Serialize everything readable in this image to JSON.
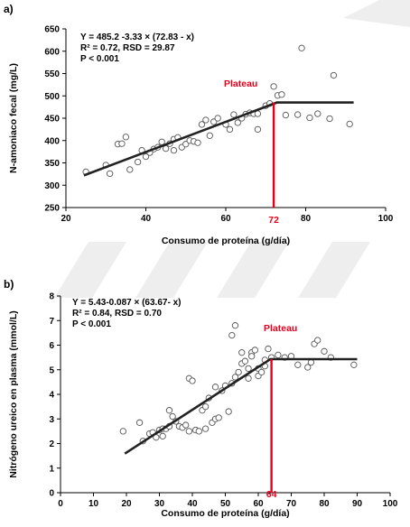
{
  "chart_data": [
    {
      "panel_label": "a)",
      "type": "scatter",
      "xlabel": "Consumo de proteína (g/día)",
      "ylabel": "N-amoniaco fecal (mg/L)",
      "xlim": [
        20,
        100
      ],
      "ylim": [
        250,
        650
      ],
      "xticks": [
        20,
        40,
        60,
        80,
        100
      ],
      "yticks": [
        250,
        300,
        350,
        400,
        450,
        500,
        550,
        600,
        650
      ],
      "equation_lines": [
        "Y = 485.2 -3.33 × (72.83 - x)",
        "R² = 0.72, RSD = 29.87",
        "P < 0.001"
      ],
      "plateau_label": "Plateau",
      "breakpoint": {
        "x": 72,
        "label": "72"
      },
      "fit_line": [
        [
          24.5,
          322
        ],
        [
          72.8,
          485.2
        ],
        [
          92,
          485.2
        ]
      ],
      "points": [
        [
          25,
          330
        ],
        [
          30,
          345
        ],
        [
          31,
          326
        ],
        [
          33,
          392
        ],
        [
          34,
          393
        ],
        [
          35,
          408
        ],
        [
          36,
          335
        ],
        [
          38,
          352
        ],
        [
          39,
          378
        ],
        [
          40,
          364
        ],
        [
          41,
          373
        ],
        [
          42,
          381
        ],
        [
          43,
          385
        ],
        [
          44,
          397
        ],
        [
          45,
          382
        ],
        [
          46,
          393
        ],
        [
          47,
          378
        ],
        [
          47,
          403
        ],
        [
          48,
          407
        ],
        [
          49,
          385
        ],
        [
          50,
          392
        ],
        [
          51,
          400
        ],
        [
          52,
          398
        ],
        [
          53,
          395
        ],
        [
          54,
          436
        ],
        [
          55,
          446
        ],
        [
          56,
          411
        ],
        [
          57,
          442
        ],
        [
          58,
          450
        ],
        [
          60,
          436
        ],
        [
          61,
          425
        ],
        [
          62,
          458
        ],
        [
          63,
          440
        ],
        [
          64,
          450
        ],
        [
          65,
          459
        ],
        [
          66,
          462
        ],
        [
          67,
          460
        ],
        [
          68,
          460
        ],
        [
          68,
          425
        ],
        [
          70,
          478
        ],
        [
          71,
          483
        ],
        [
          72,
          521
        ],
        [
          73,
          501
        ],
        [
          74,
          503
        ],
        [
          75,
          457
        ],
        [
          78,
          458
        ],
        [
          79,
          607
        ],
        [
          81,
          451
        ],
        [
          83,
          460
        ],
        [
          86,
          449
        ],
        [
          87,
          546
        ],
        [
          91,
          437
        ]
      ]
    },
    {
      "panel_label": "b)",
      "type": "scatter",
      "xlabel": "Consumo de proteína (g/día)",
      "ylabel": "Nitrógeno ureico en plasma (mmol/L)",
      "xlim": [
        0,
        100
      ],
      "ylim": [
        0,
        8
      ],
      "xticks": [
        0,
        10,
        20,
        30,
        40,
        50,
        60,
        70,
        80,
        90,
        100
      ],
      "yticks": [
        0,
        1,
        2,
        3,
        4,
        5,
        6,
        7,
        8
      ],
      "equation_lines": [
        "Y = 5.43-0.087 × (63.67- x)",
        "R² = 0.84, RSD = 0.70",
        "P < 0.001"
      ],
      "plateau_label": "Plateau",
      "breakpoint": {
        "x": 64,
        "label": "64"
      },
      "fit_line": [
        [
          19.5,
          1.59
        ],
        [
          63.67,
          5.43
        ],
        [
          90,
          5.43
        ]
      ],
      "points": [
        [
          19,
          2.5
        ],
        [
          24,
          2.85
        ],
        [
          25,
          2.1
        ],
        [
          27,
          2.4
        ],
        [
          28,
          2.45
        ],
        [
          29,
          2.25
        ],
        [
          30,
          2.55
        ],
        [
          31,
          2.3
        ],
        [
          31,
          2.6
        ],
        [
          32,
          2.6
        ],
        [
          33,
          2.7
        ],
        [
          33,
          3.35
        ],
        [
          34,
          3.1
        ],
        [
          35,
          2.9
        ],
        [
          36,
          2.7
        ],
        [
          37,
          2.65
        ],
        [
          38,
          2.75
        ],
        [
          39,
          2.5
        ],
        [
          39,
          4.65
        ],
        [
          40,
          4.55
        ],
        [
          41,
          2.55
        ],
        [
          42,
          2.5
        ],
        [
          43,
          3.35
        ],
        [
          44,
          2.6
        ],
        [
          44,
          3.5
        ],
        [
          45,
          3.85
        ],
        [
          46,
          2.85
        ],
        [
          47,
          3.0
        ],
        [
          47,
          4.3
        ],
        [
          48,
          3.05
        ],
        [
          49,
          4.15
        ],
        [
          50,
          4.35
        ],
        [
          51,
          3.3
        ],
        [
          52,
          4.45
        ],
        [
          52,
          6.4
        ],
        [
          53,
          6.8
        ],
        [
          53,
          4.7
        ],
        [
          54,
          4.9
        ],
        [
          55,
          5.25
        ],
        [
          55,
          5.7
        ],
        [
          56,
          5.35
        ],
        [
          57,
          4.65
        ],
        [
          57,
          5.05
        ],
        [
          58,
          5.7
        ],
        [
          58,
          5.55
        ],
        [
          59,
          5.8
        ],
        [
          60,
          5.05
        ],
        [
          60,
          4.75
        ],
        [
          61,
          4.9
        ],
        [
          62,
          5.15
        ],
        [
          62,
          5.4
        ],
        [
          63,
          5.85
        ],
        [
          64,
          5.5
        ],
        [
          66,
          5.6
        ],
        [
          68,
          5.5
        ],
        [
          70,
          5.55
        ],
        [
          72,
          5.2
        ],
        [
          75,
          5.1
        ],
        [
          76,
          5.3
        ],
        [
          77,
          6.05
        ],
        [
          78,
          6.2
        ],
        [
          80,
          5.75
        ],
        [
          82,
          5.5
        ],
        [
          89,
          5.2
        ]
      ]
    }
  ],
  "colors": {
    "axis": "#000000",
    "fit": "#222222",
    "marker_edge": "#555555",
    "breakpoint": "#e8001b",
    "watermark": "#e0e0e0"
  }
}
